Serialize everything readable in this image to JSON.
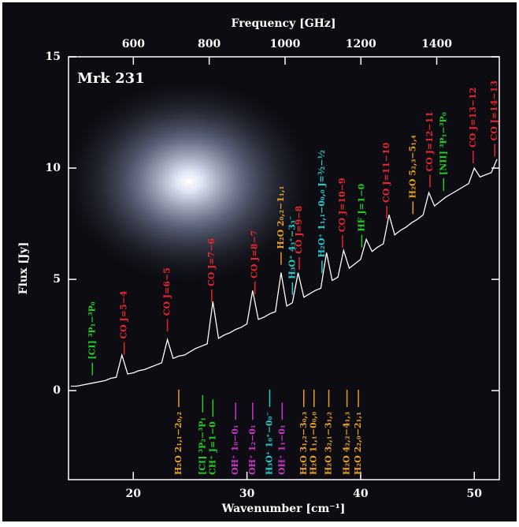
{
  "chart_data": {
    "type": "line",
    "title": "Mrk 231",
    "x_label": "Wavenumber [cm⁻¹]",
    "y_label": "Flux [Jy]",
    "x2_label": "Frequency [GHz]",
    "xlim": [
      14.3,
      52.2
    ],
    "ylim": [
      -4,
      15
    ],
    "x2lim": [
      429,
      1565
    ],
    "xticks": [
      20,
      30,
      40,
      50
    ],
    "yticks": [
      0,
      5,
      10,
      15
    ],
    "x2ticks": [
      600,
      800,
      1000,
      1200,
      1400
    ],
    "color": "#ffffff",
    "x": [
      14.5,
      15,
      15.5,
      16,
      16.5,
      17,
      17.5,
      18,
      18.5,
      19,
      19.5,
      20,
      20.5,
      21,
      21.5,
      22,
      22.5,
      23,
      23.5,
      24,
      24.5,
      25,
      25.5,
      26,
      26.5,
      27,
      27.5,
      28,
      28.5,
      29,
      29.5,
      30,
      30.5,
      31,
      31.5,
      32,
      32.5,
      33,
      33.5,
      34,
      34.5,
      35,
      35.5,
      36,
      36.5,
      37,
      37.5,
      38,
      38.5,
      39,
      39.5,
      40,
      40.5,
      41,
      41.5,
      42,
      42.5,
      43,
      43.5,
      44,
      44.5,
      45,
      45.5,
      46,
      46.5,
      47,
      47.5,
      48,
      48.5,
      49,
      49.5,
      50,
      50.5,
      51,
      51.5,
      52
    ],
    "values": [
      0.2,
      0.2,
      0.25,
      0.3,
      0.35,
      0.4,
      0.45,
      0.55,
      0.6,
      1.6,
      0.75,
      0.8,
      0.9,
      0.95,
      1.05,
      1.15,
      1.25,
      2.3,
      1.45,
      1.55,
      1.6,
      1.75,
      1.9,
      2.0,
      2.1,
      4.0,
      2.35,
      2.5,
      2.6,
      2.75,
      2.85,
      3.0,
      4.5,
      3.2,
      3.3,
      3.45,
      3.55,
      5.3,
      3.8,
      3.95,
      5.3,
      4.2,
      4.35,
      4.5,
      4.6,
      6.2,
      4.95,
      5.1,
      6.3,
      5.5,
      5.7,
      5.9,
      6.8,
      6.25,
      6.45,
      6.6,
      7.9,
      7.0,
      7.2,
      7.35,
      7.55,
      7.7,
      7.9,
      8.9,
      8.3,
      8.5,
      8.7,
      8.85,
      9.0,
      9.15,
      9.3,
      10.0,
      9.6,
      9.7,
      9.8,
      10.4
    ],
    "annotations": [
      {
        "text": "[CI] ³P₁−³P₀",
        "x": 16.4,
        "color": "#22cc22",
        "side": "above"
      },
      {
        "text": "CO J=5−4",
        "x": 19.2,
        "color": "#e8262a",
        "side": "above"
      },
      {
        "text": "CO J=6−5",
        "x": 23.0,
        "color": "#e8262a",
        "side": "above"
      },
      {
        "text": "CO J=7−6",
        "x": 26.9,
        "color": "#e8262a",
        "side": "above"
      },
      {
        "text": "CO J=8−7",
        "x": 30.7,
        "color": "#e8262a",
        "side": "above"
      },
      {
        "text": "H₂O 2₀,₂−1₁,₁",
        "x": 33.0,
        "color": "#e8a020",
        "side": "above"
      },
      {
        "text": "CO J=9−8",
        "x": 34.6,
        "color": "#e8262a",
        "side": "above"
      },
      {
        "text": "H₃O⁺ 4₃⁺−3₃⁻",
        "x": 34.0,
        "color": "#22cccc",
        "side": "above"
      },
      {
        "text": "H₂O⁺ 1₁,₁−0₀,₀ J=³⁄₂−¹⁄₂",
        "x": 36.6,
        "color": "#22cccc",
        "side": "above"
      },
      {
        "text": "CO J=10−9",
        "x": 38.4,
        "color": "#e8262a",
        "side": "above"
      },
      {
        "text": "HF J=1−0",
        "x": 40.1,
        "color": "#22cc22",
        "side": "above"
      },
      {
        "text": "CO J=11−10",
        "x": 42.3,
        "color": "#e8262a",
        "side": "above"
      },
      {
        "text": "H₂O 5₂,₃−5₁,₄",
        "x": 44.6,
        "color": "#e8a020",
        "side": "above"
      },
      {
        "text": "CO J=12−11",
        "x": 46.1,
        "color": "#e8262a",
        "side": "above"
      },
      {
        "text": "[NII] ³P₁−³P₀",
        "x": 47.3,
        "color": "#22cc22",
        "side": "above"
      },
      {
        "text": "CO J=13−12",
        "x": 49.9,
        "color": "#e8262a",
        "side": "above"
      },
      {
        "text": "CO J=14−13",
        "x": 51.8,
        "color": "#e8262a",
        "side": "above"
      },
      {
        "text": "H₂O 2₁,₁−2₀,₂",
        "x": 24.0,
        "color": "#e8a020",
        "side": "below"
      },
      {
        "text": "[CI] ³P₂−³P₁",
        "x": 26.1,
        "color": "#22cc22",
        "side": "below"
      },
      {
        "text": "CH⁺ J=1−0",
        "x": 27.0,
        "color": "#22cc22",
        "side": "below"
      },
      {
        "text": "OH⁺ 1₀−0₁",
        "x": 29.0,
        "color": "#cc33cc",
        "side": "below"
      },
      {
        "text": "OH⁺ 1₂−0₁",
        "x": 30.5,
        "color": "#cc33cc",
        "side": "below"
      },
      {
        "text": "H₃O⁺ 1₀⁺−0₀⁻",
        "x": 32.0,
        "color": "#22cccc",
        "side": "below"
      },
      {
        "text": "OH⁺ 1₁−0₁",
        "x": 33.1,
        "color": "#cc33cc",
        "side": "below"
      },
      {
        "text": "H₂O 3₁,₂−3₀,₃",
        "x": 35.0,
        "color": "#e8a020",
        "side": "below"
      },
      {
        "text": "H₂O 1₁,₁−0₀,₀",
        "x": 35.9,
        "color": "#e8a020",
        "side": "below"
      },
      {
        "text": "H₂O 3₂,₁−3₁,₂",
        "x": 37.2,
        "color": "#e8a020",
        "side": "below"
      },
      {
        "text": "H₂O 4₂,₂−4₁,₃",
        "x": 38.8,
        "color": "#e8a020",
        "side": "below"
      },
      {
        "text": "H₂O 2₂,₀−2₁,₁",
        "x": 39.8,
        "color": "#e8a020",
        "side": "below"
      }
    ]
  }
}
